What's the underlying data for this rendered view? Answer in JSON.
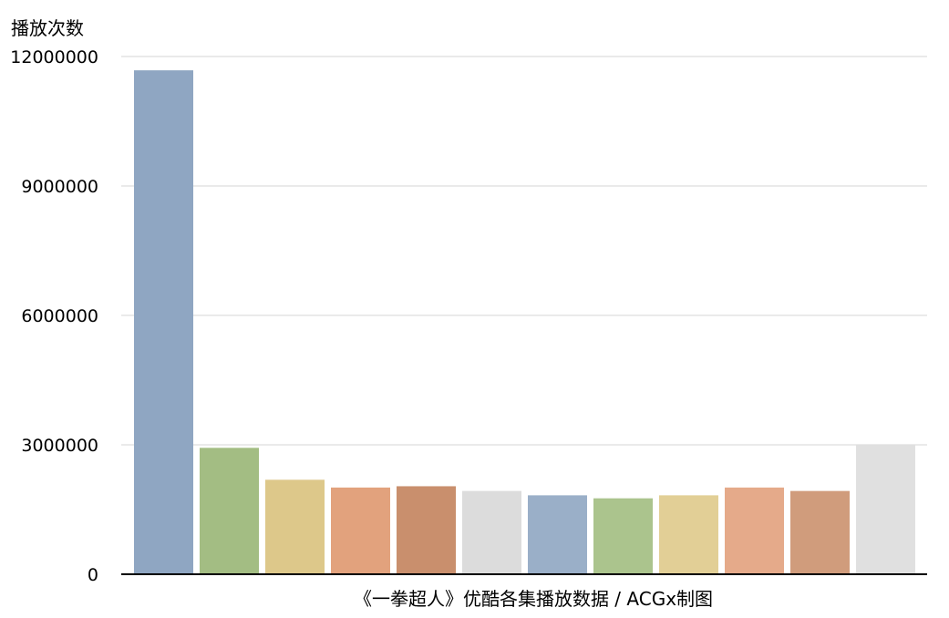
{
  "chart_data": {
    "type": "bar",
    "ylabel": "播放次数",
    "xlabel": "《一拳超人》优酷各集播放数据 / ACGx制图",
    "ylim": [
      0,
      12000000
    ],
    "yticks": [
      "0",
      "3000000",
      "6000000",
      "9000000",
      "12000000"
    ],
    "grid": true,
    "values": [
      11680000,
      2930000,
      2190000,
      2010000,
      2040000,
      1930000,
      1830000,
      1760000,
      1830000,
      2010000,
      1930000,
      3000000
    ],
    "colors": [
      "#8fa6c2",
      "#a3bd83",
      "#ddc88a",
      "#e2a27d",
      "#c98f6d",
      "#dcdcdc",
      "#9aafc8",
      "#abc48d",
      "#e2cf96",
      "#e5aa8a",
      "#d09c7c",
      "#e0e0e0"
    ]
  }
}
